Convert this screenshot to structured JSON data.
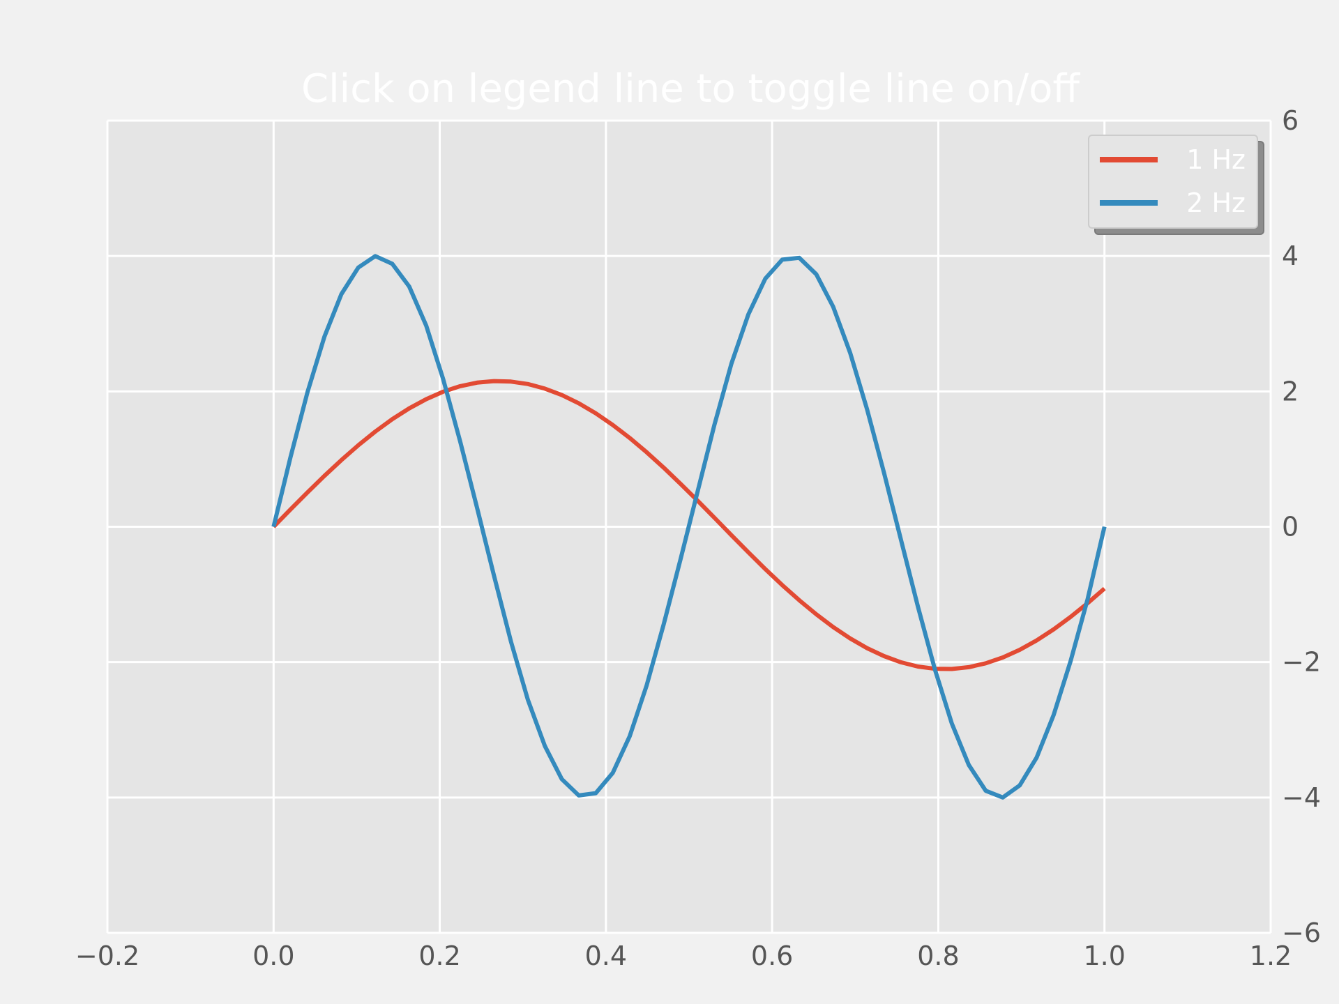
{
  "colors": {
    "figure_bg": "#f1f1f1",
    "plot_bg": "#e5e5e5",
    "grid": "#ffffff",
    "tick_text": "#555555",
    "title": "#ffffff",
    "legend_bg": "#e5e5e5",
    "legend_shadow": "#8c8c8c"
  },
  "chart_data": {
    "type": "line",
    "title": "Click on legend line to toggle line on/off",
    "xlabel": "",
    "ylabel": "",
    "xlim": [
      -0.2,
      1.2
    ],
    "ylim": [
      -6,
      6
    ],
    "x_ticks": [
      -0.2,
      0.0,
      0.2,
      0.4,
      0.6,
      0.8,
      1.0,
      1.2
    ],
    "x_tick_labels": [
      "−0.2",
      "0.0",
      "0.2",
      "0.4",
      "0.6",
      "0.8",
      "1.0",
      "1.2"
    ],
    "y_ticks": [
      6,
      4,
      2,
      0,
      -2,
      -4,
      -6
    ],
    "y_tick_labels": [
      "6",
      "4",
      "2",
      "0",
      "−2",
      "−4",
      "−6"
    ],
    "y_axis_side": "right",
    "grid": true,
    "legend_position": "top-right",
    "legend_shadow": true,
    "x": [
      0.0,
      0.0204,
      0.0408,
      0.0612,
      0.0816,
      0.102,
      0.1224,
      0.1429,
      0.1633,
      0.1837,
      0.2041,
      0.2245,
      0.2449,
      0.2653,
      0.2857,
      0.3061,
      0.3265,
      0.3469,
      0.3673,
      0.3878,
      0.4082,
      0.4286,
      0.449,
      0.4694,
      0.4898,
      0.5102,
      0.5306,
      0.551,
      0.5714,
      0.5918,
      0.6122,
      0.6327,
      0.6531,
      0.6735,
      0.6939,
      0.7143,
      0.7347,
      0.7551,
      0.7755,
      0.7959,
      0.8163,
      0.8367,
      0.8571,
      0.8776,
      0.898,
      0.9184,
      0.9388,
      0.9592,
      0.9796,
      1.0
    ],
    "series": [
      {
        "name": "1 Hz",
        "color": "#e24a33",
        "values": [
          0.0,
          0.256,
          0.508,
          0.752,
          0.985,
          1.204,
          1.406,
          1.589,
          1.749,
          1.885,
          1.995,
          2.077,
          2.129,
          2.152,
          2.145,
          2.108,
          2.041,
          1.946,
          1.824,
          1.676,
          1.504,
          1.312,
          1.101,
          0.874,
          0.635,
          0.386,
          0.132,
          -0.125,
          -0.378,
          -0.625,
          -0.862,
          -1.086,
          -1.293,
          -1.482,
          -1.649,
          -1.793,
          -1.911,
          -2.002,
          -2.065,
          -2.098,
          -2.101,
          -2.074,
          -2.017,
          -1.931,
          -1.818,
          -1.679,
          -1.516,
          -1.332,
          -1.13,
          -0.913
        ]
      },
      {
        "name": "2 Hz",
        "color": "#348abd",
        "values": [
          0.0,
          1.03,
          1.988,
          2.808,
          3.436,
          3.83,
          3.999,
          3.884,
          3.549,
          2.97,
          2.18,
          1.262,
          0.278,
          -0.725,
          -1.697,
          -2.559,
          -3.24,
          -3.729,
          -3.97,
          -3.936,
          -3.637,
          -3.095,
          -2.345,
          -1.448,
          -0.481,
          0.516,
          1.51,
          2.41,
          3.137,
          3.666,
          3.946,
          3.973,
          3.731,
          3.25,
          2.571,
          1.735,
          0.797,
          -0.193,
          -1.179,
          -2.105,
          -2.906,
          -3.52,
          -3.901,
          -4.0,
          -3.82,
          -3.408,
          -2.781,
          -1.986,
          -1.075,
          0.0
        ]
      }
    ]
  }
}
